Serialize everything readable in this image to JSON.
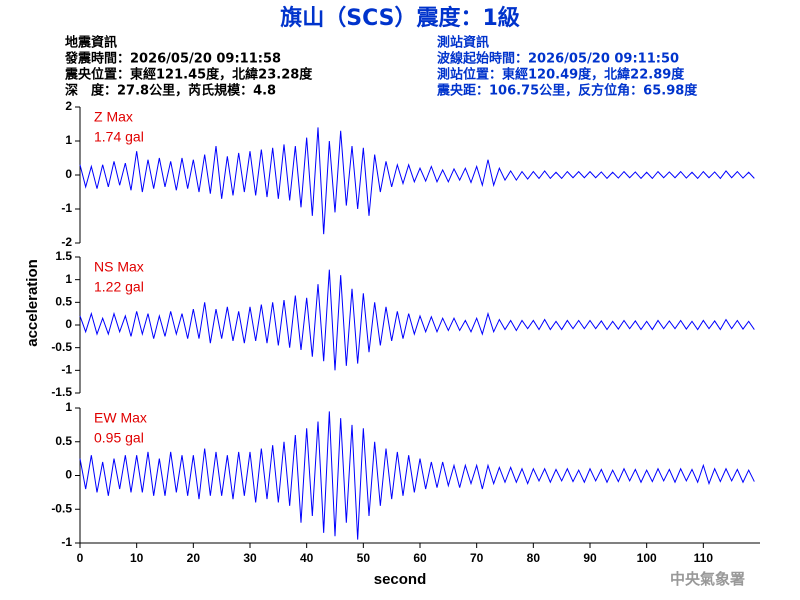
{
  "title": "旗山（SCS）震度：1級",
  "header": {
    "left": [
      "地震資訊",
      "發震時間：2026/05/20 09:11:58",
      "震央位置：東經121.45度，北緯23.28度",
      "深　度：27.8公里，芮氏規模：4.8"
    ],
    "right": [
      "測站資訊",
      "波線起始時間：2026/05/20 09:11:50",
      "測站位置：東經120.49度，北緯22.89度",
      "震央距：106.75公里，反方位角：65.98度"
    ]
  },
  "ylabel": "acceleration",
  "xlabel": "second",
  "footer": "中央氣象署",
  "chart_data": [
    {
      "type": "line",
      "annotations": [
        "Z Max",
        "1.74 gal"
      ],
      "xlim": [
        0,
        120
      ],
      "ylim": [
        -2,
        2
      ],
      "yticks": [
        -2,
        -1,
        0,
        1,
        2
      ],
      "x": [
        0,
        1,
        2,
        3,
        4,
        5,
        6,
        7,
        8,
        9,
        10,
        11,
        12,
        13,
        14,
        15,
        16,
        17,
        18,
        19,
        20,
        21,
        22,
        23,
        24,
        25,
        26,
        27,
        28,
        29,
        30,
        31,
        32,
        33,
        34,
        35,
        36,
        37,
        38,
        39,
        40,
        41,
        42,
        43,
        44,
        45,
        46,
        47,
        48,
        49,
        50,
        51,
        52,
        53,
        54,
        55,
        56,
        57,
        58,
        59,
        60,
        61,
        62,
        63,
        64,
        65,
        66,
        67,
        68,
        69,
        70,
        71,
        72,
        73,
        74,
        75,
        76,
        77,
        78,
        79,
        80,
        81,
        82,
        83,
        84,
        85,
        86,
        87,
        88,
        89,
        90,
        91,
        92,
        93,
        94,
        95,
        96,
        97,
        98,
        99,
        100,
        101,
        102,
        103,
        104,
        105,
        106,
        107,
        108,
        109,
        110,
        111,
        112,
        113,
        114,
        115,
        116,
        117,
        118,
        119
      ],
      "series": [
        {
          "color": "#0000ff",
          "values": [
            0.3,
            -0.35,
            0.25,
            -0.4,
            0.3,
            -0.35,
            0.4,
            -0.3,
            0.35,
            -0.45,
            0.7,
            -0.5,
            0.45,
            -0.4,
            0.5,
            -0.35,
            0.4,
            -0.45,
            0.5,
            -0.4,
            0.45,
            -0.5,
            0.6,
            -0.55,
            0.85,
            -0.7,
            0.55,
            -0.6,
            0.65,
            -0.5,
            0.7,
            -0.6,
            0.75,
            -0.65,
            0.8,
            -0.7,
            0.9,
            -0.75,
            0.85,
            -0.95,
            1.1,
            -1.2,
            1.4,
            -1.74,
            1.0,
            -1.1,
            1.3,
            -0.9,
            0.85,
            -1.0,
            0.8,
            -1.2,
            0.6,
            -0.5,
            0.4,
            -0.35,
            0.3,
            -0.25,
            0.3,
            -0.2,
            0.2,
            -0.18,
            0.25,
            -0.2,
            0.15,
            -0.2,
            0.18,
            -0.15,
            0.2,
            -0.22,
            0.25,
            -0.3,
            0.45,
            -0.3,
            0.2,
            -0.15,
            0.12,
            -0.15,
            0.1,
            -0.12,
            0.1,
            -0.1,
            0.12,
            -0.1,
            0.08,
            -0.1,
            0.1,
            -0.08,
            0.1,
            -0.08,
            0.1,
            -0.08,
            0.09,
            -0.1,
            0.08,
            -0.09,
            0.1,
            -0.08,
            0.09,
            -0.1,
            0.08,
            -0.1,
            0.1,
            -0.08,
            0.09,
            -0.08,
            0.1,
            -0.09,
            0.08,
            -0.1,
            0.1,
            -0.08,
            0.09,
            -0.1,
            0.12,
            -0.08,
            0.1,
            -0.09,
            0.08,
            -0.1
          ]
        }
      ]
    },
    {
      "type": "line",
      "annotations": [
        "NS Max",
        "1.22 gal"
      ],
      "xlim": [
        0,
        120
      ],
      "ylim": [
        -1.5,
        1.5
      ],
      "yticks": [
        -1.5,
        -1,
        -0.5,
        0,
        0.5,
        1,
        1.5
      ],
      "x": [
        0,
        1,
        2,
        3,
        4,
        5,
        6,
        7,
        8,
        9,
        10,
        11,
        12,
        13,
        14,
        15,
        16,
        17,
        18,
        19,
        20,
        21,
        22,
        23,
        24,
        25,
        26,
        27,
        28,
        29,
        30,
        31,
        32,
        33,
        34,
        35,
        36,
        37,
        38,
        39,
        40,
        41,
        42,
        43,
        44,
        45,
        46,
        47,
        48,
        49,
        50,
        51,
        52,
        53,
        54,
        55,
        56,
        57,
        58,
        59,
        60,
        61,
        62,
        63,
        64,
        65,
        66,
        67,
        68,
        69,
        70,
        71,
        72,
        73,
        74,
        75,
        76,
        77,
        78,
        79,
        80,
        81,
        82,
        83,
        84,
        85,
        86,
        87,
        88,
        89,
        90,
        91,
        92,
        93,
        94,
        95,
        96,
        97,
        98,
        99,
        100,
        101,
        102,
        103,
        104,
        105,
        106,
        107,
        108,
        109,
        110,
        111,
        112,
        113,
        114,
        115,
        116,
        117,
        118,
        119
      ],
      "series": [
        {
          "color": "#0000ff",
          "values": [
            0.2,
            -0.15,
            0.25,
            -0.2,
            0.15,
            -0.2,
            0.25,
            -0.15,
            0.2,
            -0.25,
            0.3,
            -0.2,
            0.25,
            -0.3,
            0.2,
            -0.25,
            0.3,
            -0.2,
            0.25,
            -0.3,
            0.35,
            -0.3,
            0.5,
            -0.4,
            0.35,
            -0.3,
            0.4,
            -0.35,
            0.3,
            -0.4,
            0.4,
            -0.35,
            0.45,
            -0.4,
            0.5,
            -0.45,
            0.55,
            -0.5,
            0.65,
            -0.55,
            0.6,
            -0.7,
            0.9,
            -0.8,
            1.22,
            -1.0,
            1.1,
            -0.9,
            0.8,
            -0.85,
            0.7,
            -0.6,
            0.5,
            -0.45,
            0.4,
            -0.35,
            0.3,
            -0.3,
            0.25,
            -0.2,
            0.2,
            -0.15,
            0.18,
            -0.15,
            0.15,
            -0.12,
            0.15,
            -0.12,
            0.1,
            -0.15,
            0.15,
            -0.2,
            0.25,
            -0.15,
            0.12,
            -0.1,
            0.1,
            -0.12,
            0.1,
            -0.08,
            0.1,
            -0.1,
            0.12,
            -0.1,
            0.08,
            -0.1,
            0.1,
            -0.08,
            0.1,
            -0.08,
            0.1,
            -0.08,
            0.09,
            -0.1,
            0.08,
            -0.09,
            0.1,
            -0.08,
            0.09,
            -0.1,
            0.08,
            -0.1,
            0.1,
            -0.08,
            0.09,
            -0.08,
            0.1,
            -0.09,
            0.08,
            -0.1,
            0.1,
            -0.08,
            0.09,
            -0.1,
            0.12,
            -0.08,
            0.1,
            -0.09,
            0.08,
            -0.1
          ]
        }
      ]
    },
    {
      "type": "line",
      "annotations": [
        "EW Max",
        "0.95 gal"
      ],
      "xlim": [
        0,
        120
      ],
      "ylim": [
        -1,
        1
      ],
      "yticks": [
        -1,
        -0.5,
        0,
        0.5,
        1
      ],
      "xticks": [
        0,
        10,
        20,
        30,
        40,
        50,
        60,
        70,
        80,
        90,
        100,
        110
      ],
      "x": [
        0,
        1,
        2,
        3,
        4,
        5,
        6,
        7,
        8,
        9,
        10,
        11,
        12,
        13,
        14,
        15,
        16,
        17,
        18,
        19,
        20,
        21,
        22,
        23,
        24,
        25,
        26,
        27,
        28,
        29,
        30,
        31,
        32,
        33,
        34,
        35,
        36,
        37,
        38,
        39,
        40,
        41,
        42,
        43,
        44,
        45,
        46,
        47,
        48,
        49,
        50,
        51,
        52,
        53,
        54,
        55,
        56,
        57,
        58,
        59,
        60,
        61,
        62,
        63,
        64,
        65,
        66,
        67,
        68,
        69,
        70,
        71,
        72,
        73,
        74,
        75,
        76,
        77,
        78,
        79,
        80,
        81,
        82,
        83,
        84,
        85,
        86,
        87,
        88,
        89,
        90,
        91,
        92,
        93,
        94,
        95,
        96,
        97,
        98,
        99,
        100,
        101,
        102,
        103,
        104,
        105,
        106,
        107,
        108,
        109,
        110,
        111,
        112,
        113,
        114,
        115,
        116,
        117,
        118,
        119
      ],
      "series": [
        {
          "color": "#0000ff",
          "values": [
            0.25,
            -0.2,
            0.3,
            -0.25,
            0.2,
            -0.3,
            0.25,
            -0.2,
            0.3,
            -0.25,
            0.3,
            -0.25,
            0.35,
            -0.3,
            0.25,
            -0.3,
            0.35,
            -0.25,
            0.3,
            -0.3,
            0.3,
            -0.35,
            0.4,
            -0.3,
            0.35,
            -0.3,
            0.3,
            -0.35,
            0.35,
            -0.3,
            0.35,
            -0.4,
            0.4,
            -0.35,
            0.45,
            -0.4,
            0.5,
            -0.45,
            0.6,
            -0.7,
            0.7,
            -0.6,
            0.8,
            -0.85,
            0.95,
            -0.9,
            0.85,
            -0.7,
            0.75,
            -0.95,
            0.7,
            -0.6,
            0.5,
            -0.45,
            0.4,
            -0.35,
            0.35,
            -0.3,
            0.3,
            -0.25,
            0.25,
            -0.2,
            0.2,
            -0.18,
            0.2,
            -0.15,
            0.15,
            -0.18,
            0.15,
            -0.12,
            0.15,
            -0.2,
            0.15,
            -0.12,
            0.12,
            -0.1,
            0.12,
            -0.1,
            0.1,
            -0.12,
            0.1,
            -0.08,
            0.1,
            -0.1,
            0.09,
            -0.08,
            0.1,
            -0.09,
            0.08,
            -0.1,
            0.1,
            -0.08,
            0.09,
            -0.1,
            0.08,
            -0.09,
            0.1,
            -0.08,
            0.09,
            -0.1,
            0.08,
            -0.09,
            0.1,
            -0.08,
            0.09,
            -0.1,
            0.1,
            -0.08,
            0.09,
            -0.1,
            0.15,
            -0.12,
            0.1,
            -0.09,
            0.1,
            -0.08,
            0.09,
            -0.1,
            0.08,
            -0.09
          ]
        }
      ]
    }
  ]
}
